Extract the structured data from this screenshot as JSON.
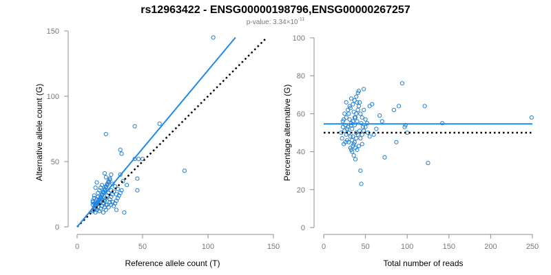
{
  "title": "rs12963422 - ENSG00000198796,ENSG00000267257",
  "subtitle": {
    "prefix": "p-value: 3.34×10",
    "exponent": "-11"
  },
  "colors": {
    "points": "#1f7fd6",
    "regression": "#1f88e5",
    "reference": "#000000",
    "axis": "#8c8c8c"
  },
  "chart_data": [
    {
      "type": "scatter",
      "xlabel": "Reference allele count (T)",
      "ylabel": "Alternative allele count (G)",
      "xlim": [
        0,
        150
      ],
      "ylim": [
        0,
        150
      ],
      "xticks": [
        0,
        50,
        100,
        150
      ],
      "yticks": [
        0,
        50,
        100,
        150
      ],
      "grid": false,
      "regression_line": {
        "from": [
          0,
          0
        ],
        "to": [
          121,
          145
        ]
      },
      "reference_line": {
        "from": [
          0,
          0
        ],
        "to": [
          145,
          145
        ],
        "style": "dotted"
      },
      "points": [
        [
          104,
          145
        ],
        [
          63,
          79
        ],
        [
          44,
          77
        ],
        [
          82,
          43
        ],
        [
          22,
          71
        ],
        [
          33,
          59
        ],
        [
          34,
          56
        ],
        [
          36,
          11
        ],
        [
          44,
          52
        ],
        [
          47,
          52
        ],
        [
          46,
          37
        ],
        [
          46,
          28
        ],
        [
          30,
          13
        ],
        [
          33,
          40
        ],
        [
          50,
          52
        ],
        [
          12,
          12
        ],
        [
          12,
          13
        ],
        [
          13,
          14
        ],
        [
          13,
          15
        ],
        [
          14,
          16
        ],
        [
          14,
          17
        ],
        [
          15,
          17
        ],
        [
          15,
          18
        ],
        [
          16,
          19
        ],
        [
          16,
          20
        ],
        [
          17,
          21
        ],
        [
          17,
          18
        ],
        [
          18,
          22
        ],
        [
          18,
          23
        ],
        [
          19,
          24
        ],
        [
          19,
          25
        ],
        [
          20,
          26
        ],
        [
          20,
          27
        ],
        [
          21,
          28
        ],
        [
          21,
          29
        ],
        [
          22,
          30
        ],
        [
          22,
          31
        ],
        [
          23,
          32
        ],
        [
          23,
          33
        ],
        [
          24,
          34
        ],
        [
          24,
          35
        ],
        [
          25,
          36
        ],
        [
          25,
          37
        ],
        [
          26,
          40
        ],
        [
          12,
          17
        ],
        [
          12,
          19
        ],
        [
          12,
          20
        ],
        [
          13,
          22
        ],
        [
          13,
          24
        ],
        [
          14,
          11
        ],
        [
          15,
          13
        ],
        [
          16,
          15
        ],
        [
          17,
          12
        ],
        [
          18,
          14
        ],
        [
          19,
          16
        ],
        [
          20,
          18
        ],
        [
          21,
          20
        ],
        [
          22,
          22
        ],
        [
          23,
          24
        ],
        [
          24,
          26
        ],
        [
          25,
          21
        ],
        [
          26,
          23
        ],
        [
          27,
          25
        ],
        [
          28,
          27
        ],
        [
          28,
          16
        ],
        [
          29,
          18
        ],
        [
          30,
          20
        ],
        [
          31,
          22
        ],
        [
          32,
          24
        ],
        [
          33,
          26
        ],
        [
          34,
          28
        ],
        [
          20,
          11
        ],
        [
          22,
          13
        ],
        [
          24,
          15
        ],
        [
          26,
          17
        ],
        [
          16,
          26
        ],
        [
          17,
          28
        ],
        [
          18,
          30
        ],
        [
          19,
          32
        ],
        [
          14,
          30
        ],
        [
          15,
          34
        ],
        [
          22,
          38
        ],
        [
          21,
          41
        ],
        [
          27,
          33
        ],
        [
          29,
          31
        ],
        [
          31,
          29
        ],
        [
          15,
          21
        ],
        [
          16,
          23
        ],
        [
          14,
          14
        ],
        [
          13,
          18
        ],
        [
          20,
          20
        ],
        [
          21,
          15
        ],
        [
          23,
          17
        ],
        [
          25,
          19
        ],
        [
          27,
          19
        ],
        [
          18,
          19
        ],
        [
          19,
          21
        ],
        [
          30,
          25
        ],
        [
          35,
          35
        ],
        [
          38,
          32
        ],
        [
          26,
          28
        ],
        [
          22,
          17
        ]
      ]
    },
    {
      "type": "scatter",
      "xlabel": "Total number of reads",
      "ylabel": "Percentage alternative (G)",
      "xlim": [
        0,
        250
      ],
      "ylim": [
        0,
        100
      ],
      "xticks": [
        0,
        50,
        100,
        150,
        200,
        250
      ],
      "yticks": [
        0,
        20,
        40,
        60,
        80,
        100
      ],
      "grid": false,
      "regression_line": {
        "y": 54.6,
        "from_x": 0,
        "to_x": 250
      },
      "reference_line": {
        "y": 50,
        "from_x": 0,
        "to_x": 250,
        "style": "dotted"
      },
      "points": [
        [
          249,
          58
        ],
        [
          142,
          55
        ],
        [
          125,
          34
        ],
        [
          121,
          64
        ],
        [
          94,
          76
        ],
        [
          90,
          64
        ],
        [
          84,
          62
        ],
        [
          87,
          45
        ],
        [
          100,
          50
        ],
        [
          97,
          53
        ],
        [
          98,
          54
        ],
        [
          73,
          37
        ],
        [
          70,
          56
        ],
        [
          67,
          59
        ],
        [
          63,
          52
        ],
        [
          60,
          49
        ],
        [
          58,
          65
        ],
        [
          55,
          64
        ],
        [
          50,
          57
        ],
        [
          48,
          73
        ],
        [
          46,
          44
        ],
        [
          45,
          23
        ],
        [
          44,
          30
        ],
        [
          43,
          66
        ],
        [
          42,
          72
        ],
        [
          41,
          62
        ],
        [
          40,
          56
        ],
        [
          39,
          50
        ],
        [
          38,
          58
        ],
        [
          37,
          54
        ],
        [
          36,
          61
        ],
        [
          35,
          48
        ],
        [
          34,
          52
        ],
        [
          33,
          55
        ],
        [
          32,
          63
        ],
        [
          31,
          57
        ],
        [
          30,
          60
        ],
        [
          29,
          53
        ],
        [
          28,
          46
        ],
        [
          27,
          49
        ],
        [
          26,
          45
        ],
        [
          25,
          51
        ],
        [
          24,
          44
        ],
        [
          23,
          56
        ],
        [
          22,
          47
        ],
        [
          21,
          50
        ],
        [
          30,
          45
        ],
        [
          32,
          42
        ],
        [
          34,
          40
        ],
        [
          36,
          38
        ],
        [
          38,
          36
        ],
        [
          40,
          41
        ],
        [
          42,
          43
        ],
        [
          44,
          47
        ],
        [
          46,
          49
        ],
        [
          48,
          51
        ],
        [
          50,
          53
        ],
        [
          52,
          55
        ],
        [
          35,
          65
        ],
        [
          37,
          67
        ],
        [
          39,
          69
        ],
        [
          41,
          71
        ],
        [
          33,
          68
        ],
        [
          31,
          64
        ],
        [
          29,
          62
        ],
        [
          27,
          58
        ],
        [
          26,
          54
        ],
        [
          28,
          52
        ],
        [
          30,
          50
        ],
        [
          32,
          48
        ],
        [
          34,
          46
        ],
        [
          36,
          44
        ],
        [
          38,
          42
        ],
        [
          40,
          66
        ],
        [
          42,
          64
        ],
        [
          44,
          60
        ],
        [
          46,
          58
        ],
        [
          48,
          62
        ],
        [
          39,
          60
        ],
        [
          37,
          58
        ],
        [
          35,
          56
        ],
        [
          33,
          54
        ],
        [
          45,
          55
        ],
        [
          47,
          53
        ],
        [
          43,
          51
        ],
        [
          41,
          49
        ],
        [
          39,
          47
        ],
        [
          37,
          45
        ],
        [
          35,
          43
        ],
        [
          33,
          41
        ],
        [
          25,
          60
        ],
        [
          24,
          57
        ],
        [
          23,
          53
        ],
        [
          27,
          66
        ],
        [
          55,
          48
        ],
        [
          53,
          50
        ]
      ]
    }
  ]
}
